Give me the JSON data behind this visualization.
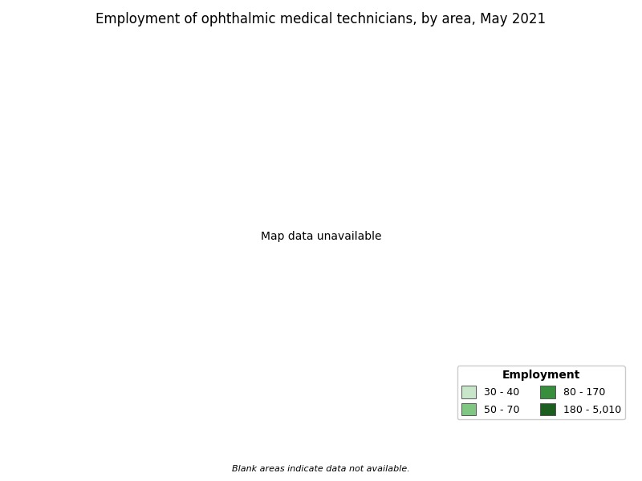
{
  "title": "Employment of ophthalmic medical technicians, by area, May 2021",
  "legend_title": "Employment",
  "legend_entries": [
    {
      "label": "30 - 40",
      "color": "#c8e6c9"
    },
    {
      "label": "50 - 70",
      "color": "#81c784"
    },
    {
      "label": "80 - 170",
      "color": "#388e3c"
    },
    {
      "label": "180 - 5,010",
      "color": "#1b5e20"
    }
  ],
  "note": "Blank areas indicate data not available.",
  "background_color": "#ffffff",
  "border_color": "#000000",
  "no_data_color": "#ffffff",
  "figsize": [
    8.0,
    6.0
  ],
  "dpi": 100
}
